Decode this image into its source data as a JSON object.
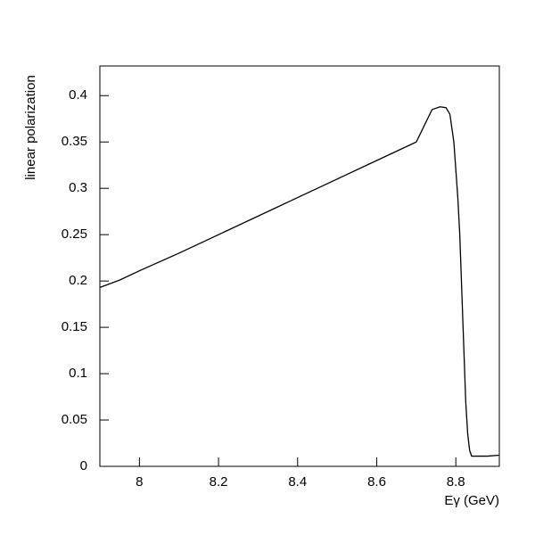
{
  "chart_data": {
    "type": "line",
    "x_label": "Eγ (GeV)",
    "y_label": "linear polarization",
    "x": [
      7.9,
      7.95,
      8.0,
      8.1,
      8.2,
      8.3,
      8.4,
      8.5,
      8.6,
      8.7,
      8.74,
      8.76,
      8.775,
      8.785,
      8.795,
      8.805,
      8.81,
      8.815,
      8.82,
      8.825,
      8.83,
      8.835,
      8.84,
      8.85,
      8.88,
      8.91
    ],
    "series": [
      {
        "name": "linear polarization",
        "color": "#000000",
        "values": [
          0.193,
          0.201,
          0.211,
          0.23,
          0.25,
          0.27,
          0.29,
          0.31,
          0.33,
          0.35,
          0.385,
          0.388,
          0.387,
          0.38,
          0.35,
          0.29,
          0.25,
          0.19,
          0.13,
          0.07,
          0.035,
          0.017,
          0.011,
          0.011,
          0.011,
          0.012
        ]
      }
    ],
    "xlim": [
      7.9,
      8.91
    ],
    "ylim": [
      0,
      0.432
    ],
    "xticks": [
      8,
      8.2,
      8.4,
      8.6,
      8.8
    ],
    "yticks": [
      0,
      0.05,
      0.1,
      0.15,
      0.2,
      0.25,
      0.3,
      0.35,
      0.4
    ],
    "grid": false
  }
}
